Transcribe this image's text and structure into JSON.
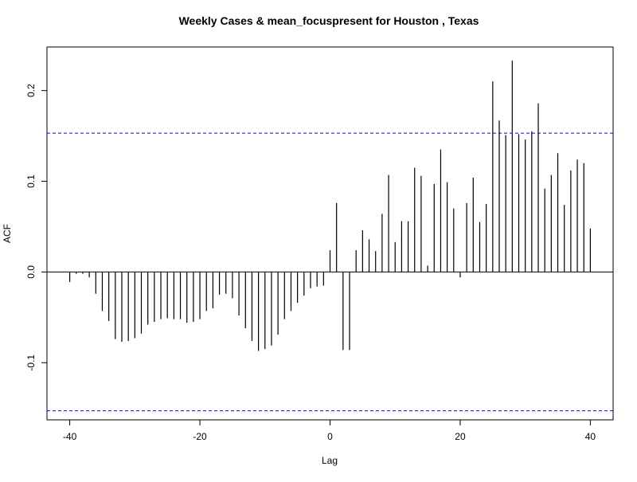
{
  "chart_data": {
    "type": "bar",
    "title": "Weekly Cases & mean_focuspresent for Houston , Texas",
    "xlabel": "Lag",
    "ylabel": "ACF",
    "xlim": [
      -43.5,
      43.5
    ],
    "ylim": [
      -0.163,
      0.248
    ],
    "x_ticks": [
      -40,
      -20,
      0,
      20,
      40
    ],
    "x_tick_labels": [
      "-40",
      "-20",
      "0",
      "20",
      "40"
    ],
    "y_ticks": [
      -0.1,
      0.0,
      0.1,
      0.2
    ],
    "y_tick_labels": [
      "-0.1",
      "0.0",
      "0.1",
      "0.2"
    ],
    "confidence_bound": 0.153,
    "confidence_color": "#0000ff",
    "bar_color": "#000000",
    "grid": false,
    "x": [
      -40,
      -39,
      -38,
      -37,
      -36,
      -35,
      -34,
      -33,
      -32,
      -31,
      -30,
      -29,
      -28,
      -27,
      -26,
      -25,
      -24,
      -23,
      -22,
      -21,
      -20,
      -19,
      -18,
      -17,
      -16,
      -15,
      -14,
      -13,
      -12,
      -11,
      -10,
      -9,
      -8,
      -7,
      -6,
      -5,
      -4,
      -3,
      -2,
      -1,
      0,
      1,
      2,
      3,
      4,
      5,
      6,
      7,
      8,
      9,
      10,
      11,
      12,
      13,
      14,
      15,
      16,
      17,
      18,
      19,
      20,
      21,
      22,
      23,
      24,
      25,
      26,
      27,
      28,
      29,
      30,
      31,
      32,
      33,
      34,
      35,
      36,
      37,
      38,
      39,
      40
    ],
    "values": [
      -0.011,
      -0.002,
      -0.002,
      -0.006,
      -0.024,
      -0.043,
      -0.054,
      -0.074,
      -0.077,
      -0.076,
      -0.073,
      -0.068,
      -0.058,
      -0.055,
      -0.052,
      -0.051,
      -0.052,
      -0.052,
      -0.056,
      -0.055,
      -0.052,
      -0.043,
      -0.04,
      -0.025,
      -0.024,
      -0.029,
      -0.048,
      -0.062,
      -0.076,
      -0.087,
      -0.085,
      -0.081,
      -0.069,
      -0.052,
      -0.043,
      -0.034,
      -0.026,
      -0.018,
      -0.016,
      -0.015,
      0.024,
      0.076,
      -0.086,
      -0.086,
      0.024,
      0.046,
      0.036,
      0.023,
      0.064,
      0.107,
      0.033,
      0.056,
      0.056,
      0.115,
      0.106,
      0.007,
      0.097,
      0.135,
      0.099,
      0.07,
      -0.006,
      0.076,
      0.104,
      0.055,
      0.075,
      0.21,
      0.167,
      0.151,
      0.233,
      0.152,
      0.146,
      0.155,
      0.186,
      0.092,
      0.107,
      0.131,
      0.074,
      0.112,
      0.124,
      0.12,
      0.048
    ]
  }
}
